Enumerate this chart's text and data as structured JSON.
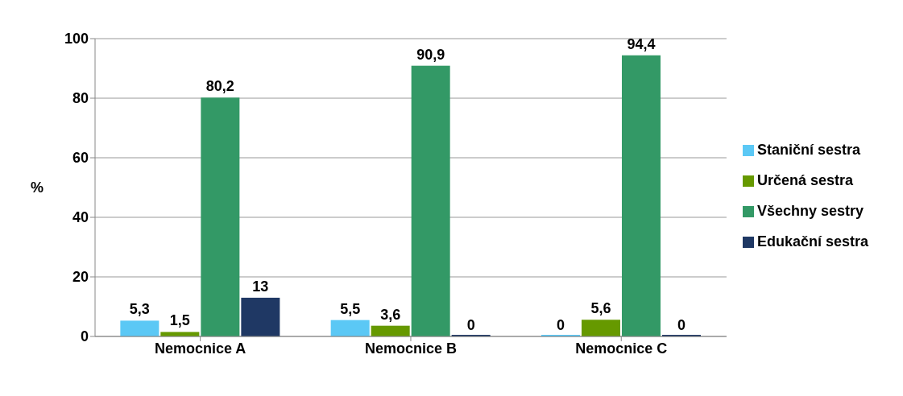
{
  "chart_data": {
    "type": "bar",
    "ylabel": "%",
    "categories": [
      "Nemocnice A",
      "Nemocnice B",
      "Nemocnice C"
    ],
    "series": [
      {
        "name": "Staniční sestra",
        "color": "#5bc8f5",
        "values": [
          5.3,
          5.5,
          0
        ],
        "value_labels": [
          "5,3",
          "5,5",
          "0"
        ]
      },
      {
        "name": "Určená sestra",
        "color": "#669900",
        "values": [
          1.5,
          3.6,
          5.6
        ],
        "value_labels": [
          "1,5",
          "3,6",
          "5,6"
        ]
      },
      {
        "name": "Všechny sestry",
        "color": "#339966",
        "values": [
          80.2,
          90.9,
          94.4
        ],
        "value_labels": [
          "80,2",
          "90,9",
          "94,4"
        ]
      },
      {
        "name": "Edukační sestra",
        "color": "#1f3864",
        "values": [
          13,
          0,
          0
        ],
        "value_labels": [
          "13",
          "0",
          "0"
        ]
      }
    ],
    "ylim": [
      0,
      100
    ],
    "yticks": [
      0,
      20,
      40,
      60,
      80,
      100
    ],
    "grid": "y",
    "legend": "right"
  }
}
